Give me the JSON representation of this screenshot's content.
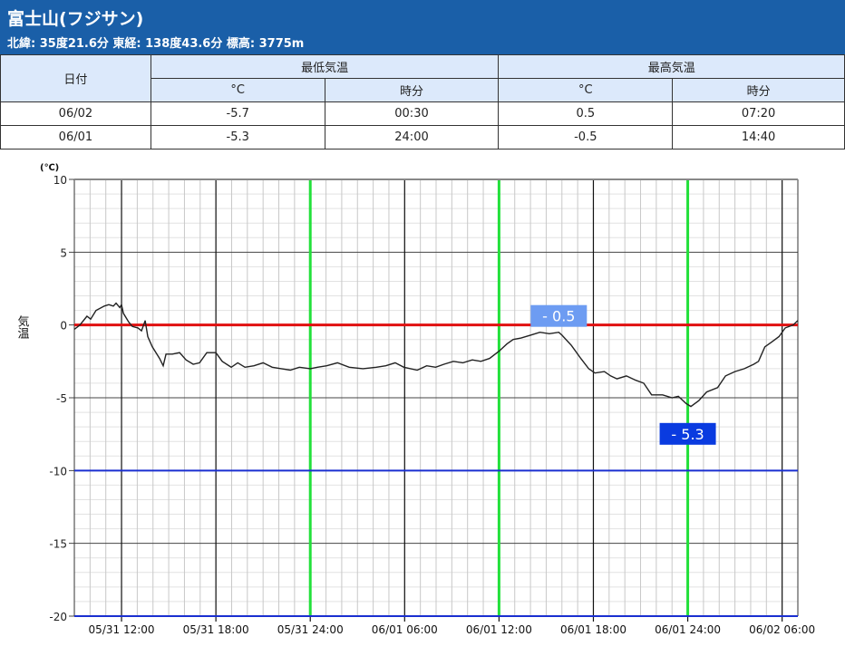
{
  "header": {
    "title": "富士山(フジサン)",
    "subtitle": "北緯: 35度21.6分 東経: 138度43.6分 標高: 3775m"
  },
  "table": {
    "date_header": "日付",
    "min_header": "最低気温",
    "max_header": "最高気温",
    "unit": "°C",
    "time": "時分",
    "rows": [
      {
        "date": "06/02",
        "min": "-5.7",
        "min_time": "00:30",
        "max": "0.5",
        "max_time": "07:20"
      },
      {
        "date": "06/01",
        "min": "-5.3",
        "min_time": "24:00",
        "max": "-0.5",
        "max_time": "14:40"
      }
    ]
  },
  "chart_data": {
    "type": "line",
    "ylabel": "気温",
    "yunit": "(℃)",
    "ylim": [
      -20,
      10
    ],
    "yticks": [
      10,
      5,
      0,
      -5,
      -10,
      -15,
      -20
    ],
    "x_start": "05/31 09:00",
    "xlim_hours": [
      0,
      46
    ],
    "xticks": [
      {
        "h": 3,
        "label": "05/31 12:00"
      },
      {
        "h": 9,
        "label": "05/31 18:00"
      },
      {
        "h": 15,
        "label": "05/31 24:00"
      },
      {
        "h": 21,
        "label": "06/01 06:00"
      },
      {
        "h": 27,
        "label": "06/01 12:00"
      },
      {
        "h": 33,
        "label": "06/01 18:00"
      },
      {
        "h": 39,
        "label": "06/01 24:00"
      },
      {
        "h": 45,
        "label": "06/02 06:00"
      }
    ],
    "green_lines_hours": [
      15,
      27,
      39
    ],
    "reference_lines": [
      {
        "value": 0,
        "color": "#e01010"
      },
      {
        "value": -10,
        "color": "#1a2fd0"
      },
      {
        "value": -20,
        "color": "#1a2fd0"
      }
    ],
    "annotations": [
      {
        "label": "- 0.5",
        "h": 30.8,
        "value": -0.5,
        "color": "#6d9cf2"
      },
      {
        "label": "- 5.3",
        "h": 39,
        "value": -5.3,
        "color": "#0a3be0"
      }
    ],
    "series": [
      {
        "name": "気温",
        "points": [
          [
            0,
            -0.3
          ],
          [
            0.35,
            0
          ],
          [
            0.8,
            0.6
          ],
          [
            1.04,
            0.4
          ],
          [
            1.38,
            1.0
          ],
          [
            1.9,
            1.3
          ],
          [
            2.19,
            1.4
          ],
          [
            2.48,
            1.3
          ],
          [
            2.65,
            1.5
          ],
          [
            2.89,
            1.2
          ],
          [
            3.0,
            1.4
          ],
          [
            3.12,
            0.8
          ],
          [
            3.46,
            0.2
          ],
          [
            3.69,
            -0.1
          ],
          [
            4.04,
            -0.2
          ],
          [
            4.27,
            -0.4
          ],
          [
            4.5,
            0.3
          ],
          [
            4.67,
            -0.8
          ],
          [
            4.96,
            -1.5
          ],
          [
            5.42,
            -2.3
          ],
          [
            5.65,
            -2.8
          ],
          [
            5.83,
            -2.0
          ],
          [
            6.23,
            -2.0
          ],
          [
            6.69,
            -1.9
          ],
          [
            7.1,
            -2.4
          ],
          [
            7.56,
            -2.7
          ],
          [
            7.96,
            -2.6
          ],
          [
            8.42,
            -1.9
          ],
          [
            9.0,
            -1.9
          ],
          [
            9.4,
            -2.5
          ],
          [
            9.98,
            -2.9
          ],
          [
            10.39,
            -2.6
          ],
          [
            10.85,
            -2.9
          ],
          [
            11.42,
            -2.8
          ],
          [
            12.0,
            -2.6
          ],
          [
            12.58,
            -2.9
          ],
          [
            13.16,
            -3.0
          ],
          [
            13.73,
            -3.1
          ],
          [
            14.31,
            -2.9
          ],
          [
            15.0,
            -3.0
          ],
          [
            15.46,
            -2.9
          ],
          [
            16.04,
            -2.8
          ],
          [
            16.73,
            -2.6
          ],
          [
            17.48,
            -2.9
          ],
          [
            18.35,
            -3.0
          ],
          [
            19.2,
            -2.9
          ],
          [
            19.8,
            -2.8
          ],
          [
            20.4,
            -2.6
          ],
          [
            20.95,
            -2.9
          ],
          [
            21.8,
            -3.1
          ],
          [
            22.4,
            -2.8
          ],
          [
            22.97,
            -2.9
          ],
          [
            23.5,
            -2.7
          ],
          [
            24.1,
            -2.5
          ],
          [
            24.7,
            -2.6
          ],
          [
            25.3,
            -2.4
          ],
          [
            25.85,
            -2.5
          ],
          [
            26.4,
            -2.3
          ],
          [
            27.0,
            -1.8
          ],
          [
            27.5,
            -1.3
          ],
          [
            27.9,
            -1.0
          ],
          [
            28.4,
            -0.9
          ],
          [
            29.0,
            -0.7
          ],
          [
            29.6,
            -0.5
          ],
          [
            30.2,
            -0.6
          ],
          [
            30.8,
            -0.5
          ],
          [
            31.0,
            -0.7
          ],
          [
            31.6,
            -1.4
          ],
          [
            32.2,
            -2.3
          ],
          [
            32.7,
            -3.0
          ],
          [
            33.1,
            -3.3
          ],
          [
            33.7,
            -3.2
          ],
          [
            34.1,
            -3.5
          ],
          [
            34.5,
            -3.7
          ],
          [
            35.1,
            -3.5
          ],
          [
            35.7,
            -3.8
          ],
          [
            36.2,
            -4.0
          ],
          [
            36.7,
            -4.8
          ],
          [
            37.4,
            -4.8
          ],
          [
            38.0,
            -5.0
          ],
          [
            38.4,
            -4.9
          ],
          [
            38.9,
            -5.4
          ],
          [
            39.2,
            -5.6
          ],
          [
            39.7,
            -5.2
          ],
          [
            40.2,
            -4.6
          ],
          [
            40.9,
            -4.3
          ],
          [
            41.4,
            -3.5
          ],
          [
            42.0,
            -3.2
          ],
          [
            42.6,
            -3.0
          ],
          [
            43.2,
            -2.7
          ],
          [
            43.5,
            -2.5
          ],
          [
            43.9,
            -1.5
          ],
          [
            44.3,
            -1.2
          ],
          [
            44.8,
            -0.8
          ],
          [
            45.2,
            -0.2
          ],
          [
            45.7,
            0.0
          ],
          [
            46.0,
            0.3
          ]
        ]
      }
    ]
  }
}
